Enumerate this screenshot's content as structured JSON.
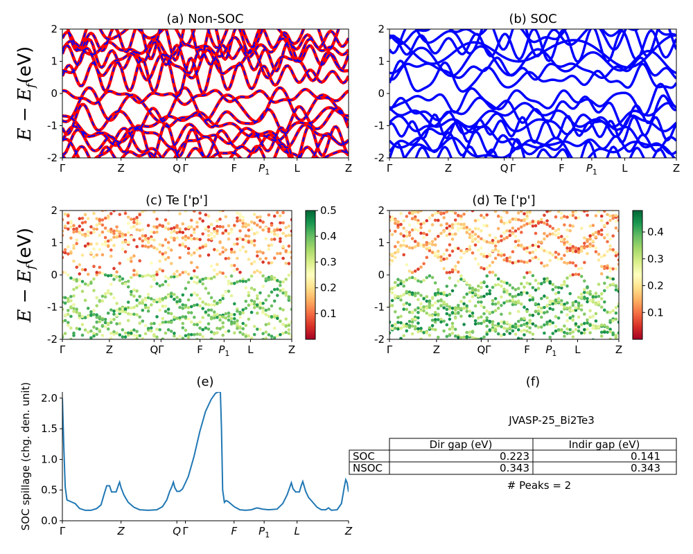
{
  "k_labels": [
    "Γ",
    "Z",
    "Q",
    "Γ",
    "F",
    "P",
    "L",
    "Z"
  ],
  "k_sub": [
    "",
    "",
    "",
    "",
    "",
    "1",
    "",
    ""
  ],
  "k_pos": [
    0,
    0.205,
    0.4,
    0.43,
    0.6,
    0.705,
    0.82,
    1.0
  ],
  "y_label_main": "E − E",
  "y_label_sub": "f",
  "y_label_unit": "(eV)",
  "chart_data": [
    {
      "id": "a",
      "type": "line",
      "title": "(a) Non-SOC",
      "ylim": [
        -2,
        2
      ],
      "yticks": [
        -2,
        -1,
        0,
        1,
        2
      ],
      "series": [
        {
          "color": "#ff0000",
          "style": "solid"
        },
        {
          "color": "#0000ff",
          "style": "dashed"
        }
      ]
    },
    {
      "id": "b",
      "type": "line",
      "title": "(b) SOC",
      "ylim": [
        -2,
        2
      ],
      "yticks": [
        -2,
        -1,
        0,
        1,
        2
      ],
      "series": [
        {
          "color": "#0000ff",
          "style": "solid"
        }
      ]
    },
    {
      "id": "c",
      "type": "scatter",
      "title": "(c)  Te ['p']",
      "ylim": [
        -2,
        2
      ],
      "yticks": [
        -2,
        -1,
        0,
        1,
        2
      ],
      "colorbar": {
        "min": 0.0,
        "max": 0.5,
        "ticks": [
          0.1,
          0.2,
          0.3,
          0.4,
          0.5
        ],
        "tick_labels": [
          "0.1",
          "0.2",
          "0.3",
          "0.4",
          "0.5"
        ]
      }
    },
    {
      "id": "d",
      "type": "scatter",
      "title": "(d) Te ['p']",
      "ylim": [
        -2,
        2
      ],
      "yticks": [
        -2,
        -1,
        0,
        1,
        2
      ],
      "colorbar": {
        "min": 0.0,
        "max": 0.48,
        "ticks": [
          0.1,
          0.2,
          0.3,
          0.4
        ],
        "tick_labels": [
          "0.1",
          "0.2",
          "0.3",
          "0.4"
        ]
      }
    },
    {
      "id": "e",
      "type": "line",
      "title": "(e)",
      "ylabel": "SOC spillage (chg. den. unit)",
      "ylim": [
        0,
        2.1
      ],
      "yticks": [
        0.0,
        0.5,
        1.0,
        1.5,
        2.0
      ],
      "ytick_labels": [
        "0.0",
        "0.5",
        "1.0",
        "1.5",
        "2.0"
      ],
      "series": [
        {
          "color": "#1f77b4",
          "points": [
            [
              0.0,
              2.0
            ],
            [
              0.005,
              1.2
            ],
            [
              0.01,
              0.55
            ],
            [
              0.016,
              0.34
            ],
            [
              0.03,
              0.31
            ],
            [
              0.045,
              0.28
            ],
            [
              0.06,
              0.2
            ],
            [
              0.08,
              0.17
            ],
            [
              0.1,
              0.17
            ],
            [
              0.12,
              0.2
            ],
            [
              0.135,
              0.26
            ],
            [
              0.145,
              0.42
            ],
            [
              0.155,
              0.57
            ],
            [
              0.165,
              0.57
            ],
            [
              0.172,
              0.47
            ],
            [
              0.188,
              0.47
            ],
            [
              0.196,
              0.58
            ],
            [
              0.2,
              0.63
            ],
            [
              0.205,
              0.54
            ],
            [
              0.215,
              0.42
            ],
            [
              0.23,
              0.3
            ],
            [
              0.25,
              0.22
            ],
            [
              0.27,
              0.18
            ],
            [
              0.3,
              0.17
            ],
            [
              0.33,
              0.18
            ],
            [
              0.35,
              0.23
            ],
            [
              0.365,
              0.34
            ],
            [
              0.375,
              0.48
            ],
            [
              0.382,
              0.55
            ],
            [
              0.388,
              0.63
            ],
            [
              0.393,
              0.54
            ],
            [
              0.4,
              0.48
            ],
            [
              0.41,
              0.48
            ],
            [
              0.42,
              0.52
            ],
            [
              0.44,
              0.72
            ],
            [
              0.46,
              1.05
            ],
            [
              0.48,
              1.45
            ],
            [
              0.5,
              1.78
            ],
            [
              0.52,
              1.98
            ],
            [
              0.535,
              2.08
            ],
            [
              0.545,
              2.1
            ],
            [
              0.552,
              2.1
            ],
            [
              0.556,
              1.5
            ],
            [
              0.56,
              0.5
            ],
            [
              0.566,
              0.3
            ],
            [
              0.572,
              0.33
            ],
            [
              0.58,
              0.31
            ],
            [
              0.6,
              0.23
            ],
            [
              0.62,
              0.18
            ],
            [
              0.64,
              0.17
            ],
            [
              0.66,
              0.18
            ],
            [
              0.68,
              0.21
            ],
            [
              0.7,
              0.19
            ],
            [
              0.72,
              0.18
            ],
            [
              0.75,
              0.19
            ],
            [
              0.77,
              0.28
            ],
            [
              0.785,
              0.42
            ],
            [
              0.795,
              0.55
            ],
            [
              0.8,
              0.62
            ],
            [
              0.806,
              0.52
            ],
            [
              0.815,
              0.47
            ],
            [
              0.828,
              0.47
            ],
            [
              0.835,
              0.58
            ],
            [
              0.84,
              0.64
            ],
            [
              0.85,
              0.48
            ],
            [
              0.86,
              0.38
            ],
            [
              0.875,
              0.3
            ],
            [
              0.89,
              0.22
            ],
            [
              0.905,
              0.18
            ],
            [
              0.92,
              0.18
            ],
            [
              0.93,
              0.21
            ],
            [
              0.94,
              0.17
            ],
            [
              0.96,
              0.18
            ],
            [
              0.975,
              0.28
            ],
            [
              0.985,
              0.55
            ],
            [
              0.99,
              0.67
            ],
            [
              0.995,
              0.62
            ],
            [
              1.0,
              0.47
            ]
          ]
        }
      ]
    },
    {
      "id": "f",
      "type": "table",
      "title": "(f)",
      "name": "JVASP-25_Bi2Te3",
      "columns": [
        "Dir gap (eV)",
        "Indir gap (eV)"
      ],
      "rows": [
        {
          "label": "SOC",
          "values": [
            "0.223",
            "0.141"
          ]
        },
        {
          "label": "NSOC",
          "values": [
            "0.343",
            "0.343"
          ]
        }
      ],
      "footer": "# Peaks = 2"
    }
  ]
}
